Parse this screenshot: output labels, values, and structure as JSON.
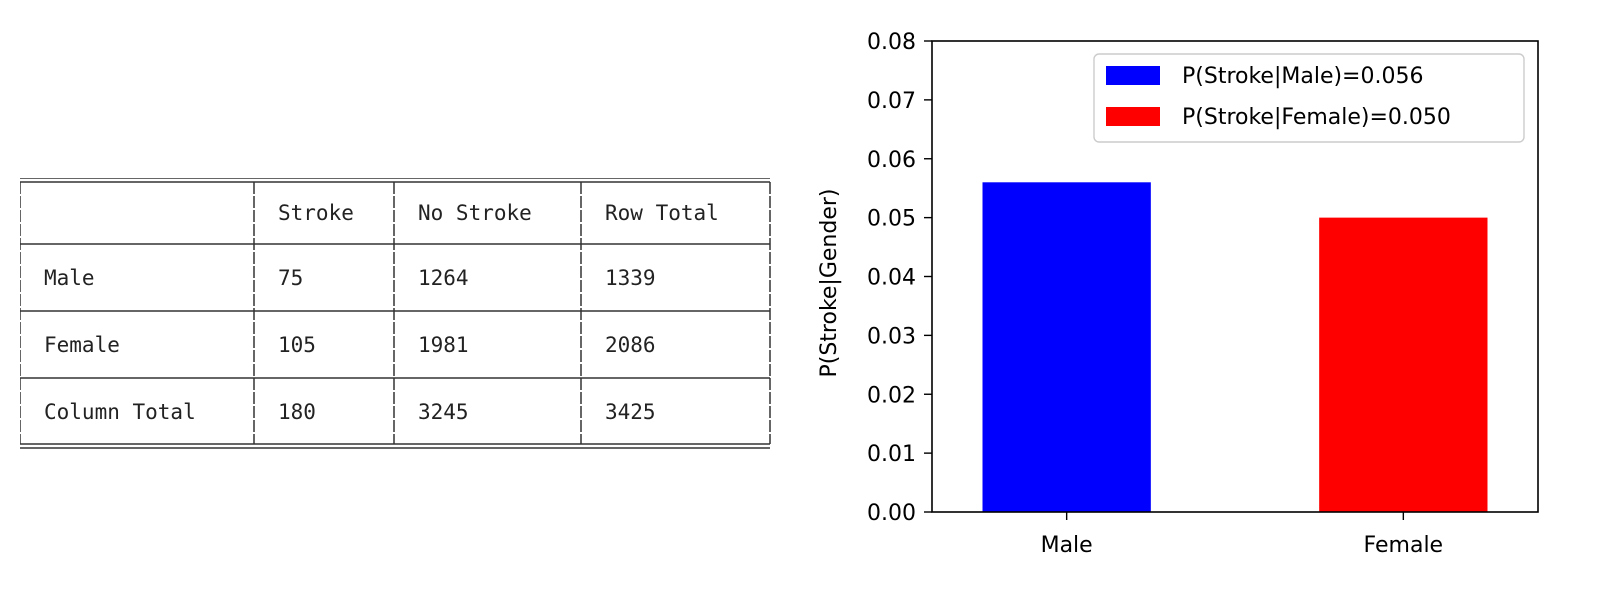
{
  "table": {
    "header": [
      "",
      "Stroke",
      "No Stroke",
      "Row Total"
    ],
    "rows": [
      [
        "Male",
        "75",
        "1264",
        "1339"
      ],
      [
        "Female",
        "105",
        "1981",
        "2086"
      ],
      [
        "Column Total",
        "180",
        "3245",
        "3425"
      ]
    ]
  },
  "chart_data": {
    "type": "bar",
    "categories": [
      "Male",
      "Female"
    ],
    "values": [
      0.056,
      0.05
    ],
    "colors": [
      "#0000ff",
      "#ff0000"
    ],
    "title": "",
    "xlabel": "",
    "ylabel": "P(Stroke|Gender)",
    "ylim": [
      0,
      0.08
    ],
    "yticks": [
      "0.00",
      "0.01",
      "0.02",
      "0.03",
      "0.04",
      "0.05",
      "0.06",
      "0.07",
      "0.08"
    ],
    "grid": false,
    "legend": {
      "position": "upper right",
      "entries": [
        {
          "label": "P(Stroke|Male)=0.056",
          "color": "#0000ff"
        },
        {
          "label": "P(Stroke|Female)=0.050",
          "color": "#ff0000"
        }
      ]
    }
  }
}
